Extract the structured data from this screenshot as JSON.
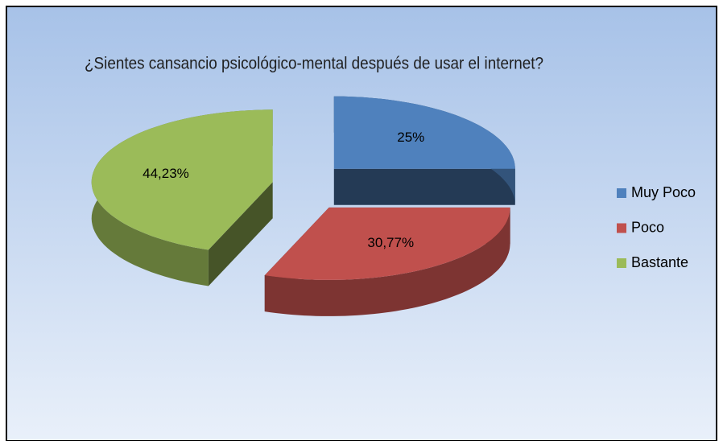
{
  "chart_data": {
    "type": "pie3d",
    "title": "¿Sientes cansancio psicológico-mental después de usar  el internet?",
    "categories": [
      "Muy Poco",
      "Poco",
      "Bastante"
    ],
    "values": [
      25,
      30.77,
      44.23
    ],
    "value_labels": [
      "25%",
      "30,77%",
      "44,23%"
    ],
    "colors": [
      "#4f81bd",
      "#c0504d",
      "#9bbb59"
    ],
    "legend": "right"
  }
}
